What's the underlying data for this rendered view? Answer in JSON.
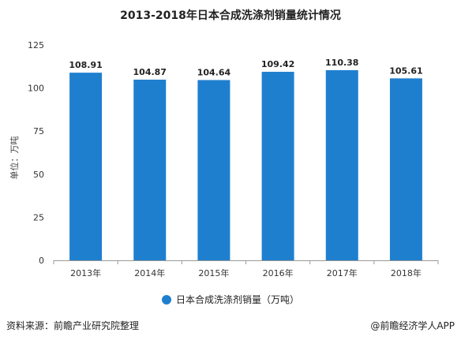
{
  "chart_data": {
    "type": "bar",
    "title": "2013-2018年日本合成洗涤剂销量统计情况",
    "ylabel": "单位：万吨",
    "xlabel": "",
    "categories": [
      "2013年",
      "2014年",
      "2015年",
      "2016年",
      "2017年",
      "2018年"
    ],
    "series": [
      {
        "name": "日本合成洗涤剂销量（万吨）",
        "values": [
          108.91,
          104.87,
          104.64,
          109.42,
          110.38,
          105.61
        ]
      }
    ],
    "ylim": [
      0,
      125
    ],
    "yticks": [
      0,
      25,
      50,
      75,
      100,
      125
    ],
    "grid": false,
    "legend_position": "bottom",
    "bar_color": "#1f7fcf"
  },
  "footer": {
    "source": "资料来源：前瞻产业研究院整理",
    "brand": "@前瞻经济学人APP"
  }
}
